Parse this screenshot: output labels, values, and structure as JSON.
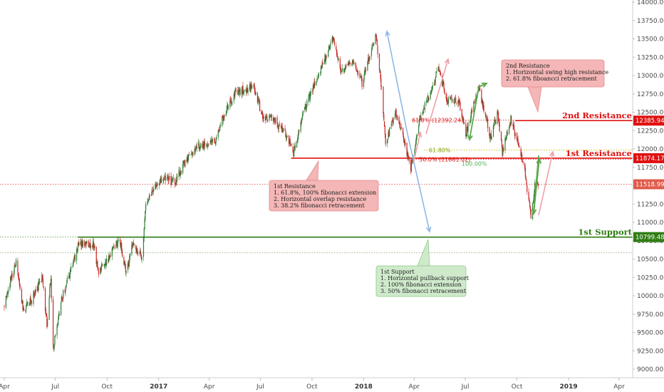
{
  "chart_data": {
    "type": "candlestick",
    "instrument_hint": "DAX index, daily",
    "y_axis": {
      "min": 8900,
      "max": 14100,
      "ticks": [
        9000,
        9250,
        9500,
        9750,
        10000,
        10250,
        10500,
        10750,
        11000,
        11250,
        11500,
        11750,
        12000,
        12250,
        12500,
        12750,
        13000,
        13250,
        13500,
        13750,
        14000
      ],
      "tick_labels": [
        "9000.00",
        "9250.00",
        "9500.00",
        "9750.00",
        "10000.00",
        "10250.00",
        "10500.00",
        "10750.00",
        "11000.00",
        "11250.00",
        "11500.00",
        "11750.00",
        "12000.00",
        "12250.00",
        "12500.00",
        "12750.00",
        "13000.00",
        "13250.00",
        "13500.00",
        "13750.00",
        "14000.00"
      ]
    },
    "x_axis": {
      "start": "2016-04-01",
      "end": "2019-04-20",
      "ticks": [
        {
          "label": "Apr",
          "date": "2016-04-01",
          "bold": false
        },
        {
          "label": "Jul",
          "date": "2016-07-01",
          "bold": false
        },
        {
          "label": "Oct",
          "date": "2016-10-01",
          "bold": false
        },
        {
          "label": "2017",
          "date": "2017-01-01",
          "bold": true
        },
        {
          "label": "Apr",
          "date": "2017-04-01",
          "bold": false
        },
        {
          "label": "Jul",
          "date": "2017-07-01",
          "bold": false
        },
        {
          "label": "Oct",
          "date": "2017-10-01",
          "bold": false
        },
        {
          "label": "2018",
          "date": "2018-01-01",
          "bold": true
        },
        {
          "label": "Apr",
          "date": "2018-04-01",
          "bold": false
        },
        {
          "label": "Jul",
          "date": "2018-07-01",
          "bold": false
        },
        {
          "label": "Oct",
          "date": "2018-10-01",
          "bold": false
        },
        {
          "label": "2019",
          "date": "2019-01-01",
          "bold": true
        },
        {
          "label": "Apr",
          "date": "2019-04-01",
          "bold": false
        }
      ]
    },
    "price_path": [
      [
        "2016-04-01",
        9850
      ],
      [
        "2016-04-15",
        10300
      ],
      [
        "2016-04-22",
        10450
      ],
      [
        "2016-05-05",
        9800
      ],
      [
        "2016-05-20",
        9950
      ],
      [
        "2016-06-08",
        10250
      ],
      [
        "2016-06-16",
        9600
      ],
      [
        "2016-06-23",
        10250
      ],
      [
        "2016-06-27",
        9280
      ],
      [
        "2016-07-12",
        9950
      ],
      [
        "2016-08-12",
        10700
      ],
      [
        "2016-09-07",
        10700
      ],
      [
        "2016-09-16",
        10300
      ],
      [
        "2016-10-10",
        10600
      ],
      [
        "2016-10-24",
        10750
      ],
      [
        "2016-11-04",
        10300
      ],
      [
        "2016-11-15",
        10700
      ],
      [
        "2016-11-25",
        10600
      ],
      [
        "2016-12-02",
        10550
      ],
      [
        "2016-12-05",
        10800
      ],
      [
        "2016-12-08",
        11200
      ],
      [
        "2016-12-20",
        11450
      ],
      [
        "2017-01-10",
        11600
      ],
      [
        "2017-01-31",
        11550
      ],
      [
        "2017-02-15",
        11800
      ],
      [
        "2017-03-15",
        12050
      ],
      [
        "2017-04-13",
        12100
      ],
      [
        "2017-04-24",
        12400
      ],
      [
        "2017-05-16",
        12750
      ],
      [
        "2017-06-20",
        12850
      ],
      [
        "2017-07-06",
        12400
      ],
      [
        "2017-07-20",
        12450
      ],
      [
        "2017-08-15",
        12200
      ],
      [
        "2017-08-29",
        11950
      ],
      [
        "2017-09-15",
        12500
      ],
      [
        "2017-10-10",
        12950
      ],
      [
        "2017-11-07",
        13500
      ],
      [
        "2017-11-21",
        13050
      ],
      [
        "2017-12-12",
        13200
      ],
      [
        "2017-12-29",
        12900
      ],
      [
        "2018-01-23",
        13560
      ],
      [
        "2018-02-02",
        12800
      ],
      [
        "2018-02-09",
        12100
      ],
      [
        "2018-02-27",
        12500
      ],
      [
        "2018-03-23",
        11850
      ],
      [
        "2018-03-26",
        11750
      ],
      [
        "2018-04-10",
        12400
      ],
      [
        "2018-05-15",
        13100
      ],
      [
        "2018-05-29",
        12650
      ],
      [
        "2018-06-20",
        12650
      ],
      [
        "2018-07-02",
        12200
      ],
      [
        "2018-07-25",
        12850
      ],
      [
        "2018-08-15",
        12150
      ],
      [
        "2018-08-28",
        12500
      ],
      [
        "2018-09-05",
        11950
      ],
      [
        "2018-09-20",
        12400
      ],
      [
        "2018-10-08",
        11950
      ],
      [
        "2018-10-16",
        11650
      ],
      [
        "2018-10-26",
        11050
      ],
      [
        "2018-11-02",
        11520
      ],
      [
        "2018-11-08",
        11540
      ]
    ],
    "levels": [
      {
        "name": "2nd Resistance",
        "value": 12385.94,
        "price_label": "12385.94",
        "color": "#e01010",
        "start": "2018-09-28"
      },
      {
        "name": "1st Resistance",
        "value": 11874.17,
        "price_label": "11874.17",
        "color": "#e01010",
        "start": "2017-08-25"
      },
      {
        "name": "1st Support",
        "value": 10799.48,
        "price_label": "10799.48",
        "color": "#2e7d12",
        "start": "2016-08-10"
      },
      {
        "name": "current",
        "value": 11518.99,
        "price_label": "11518.99",
        "color": "#e05a4a",
        "start": null
      }
    ],
    "fib_labels": [
      {
        "text": "61.8% (12392.24)",
        "color": "#e01010"
      },
      {
        "text": "50.0% (11861.02)",
        "color": "#e01010"
      },
      {
        "text": "61.80%",
        "color": "#7a9a00"
      },
      {
        "text": "100.00%",
        "color": "#4caf50"
      }
    ],
    "callouts": [
      {
        "key": "res1",
        "lines": [
          "1st Resistance",
          "1. 61.8%, 100% fibonacci extension",
          "2. Horizontal overlap resistance",
          "3. 38.2% fibonacci retracement"
        ],
        "fill": "#f4b6b6",
        "stroke": "#e68a8a"
      },
      {
        "key": "res2",
        "lines": [
          "2nd Resistance",
          "1. Horizontal swing high resistance",
          "2. 61.8% fiboancci retracement"
        ],
        "fill": "#f4b6b6",
        "stroke": "#e68a8a"
      },
      {
        "key": "sup1",
        "lines": [
          "1st Support",
          "1. Horizontal pullback support",
          "2. 100% fibonacci extension",
          "3. 50% fibonacci retracement"
        ],
        "fill": "#cfeacb",
        "stroke": "#8fc987"
      }
    ],
    "colors": {
      "up": "#2e7d32",
      "down": "#c62828",
      "arrow_blue": "#8fb7e8",
      "arrow_green": "#5aa84c",
      "arrow_pink": "#f0a0a8"
    },
    "grid": false,
    "legend": "none"
  }
}
